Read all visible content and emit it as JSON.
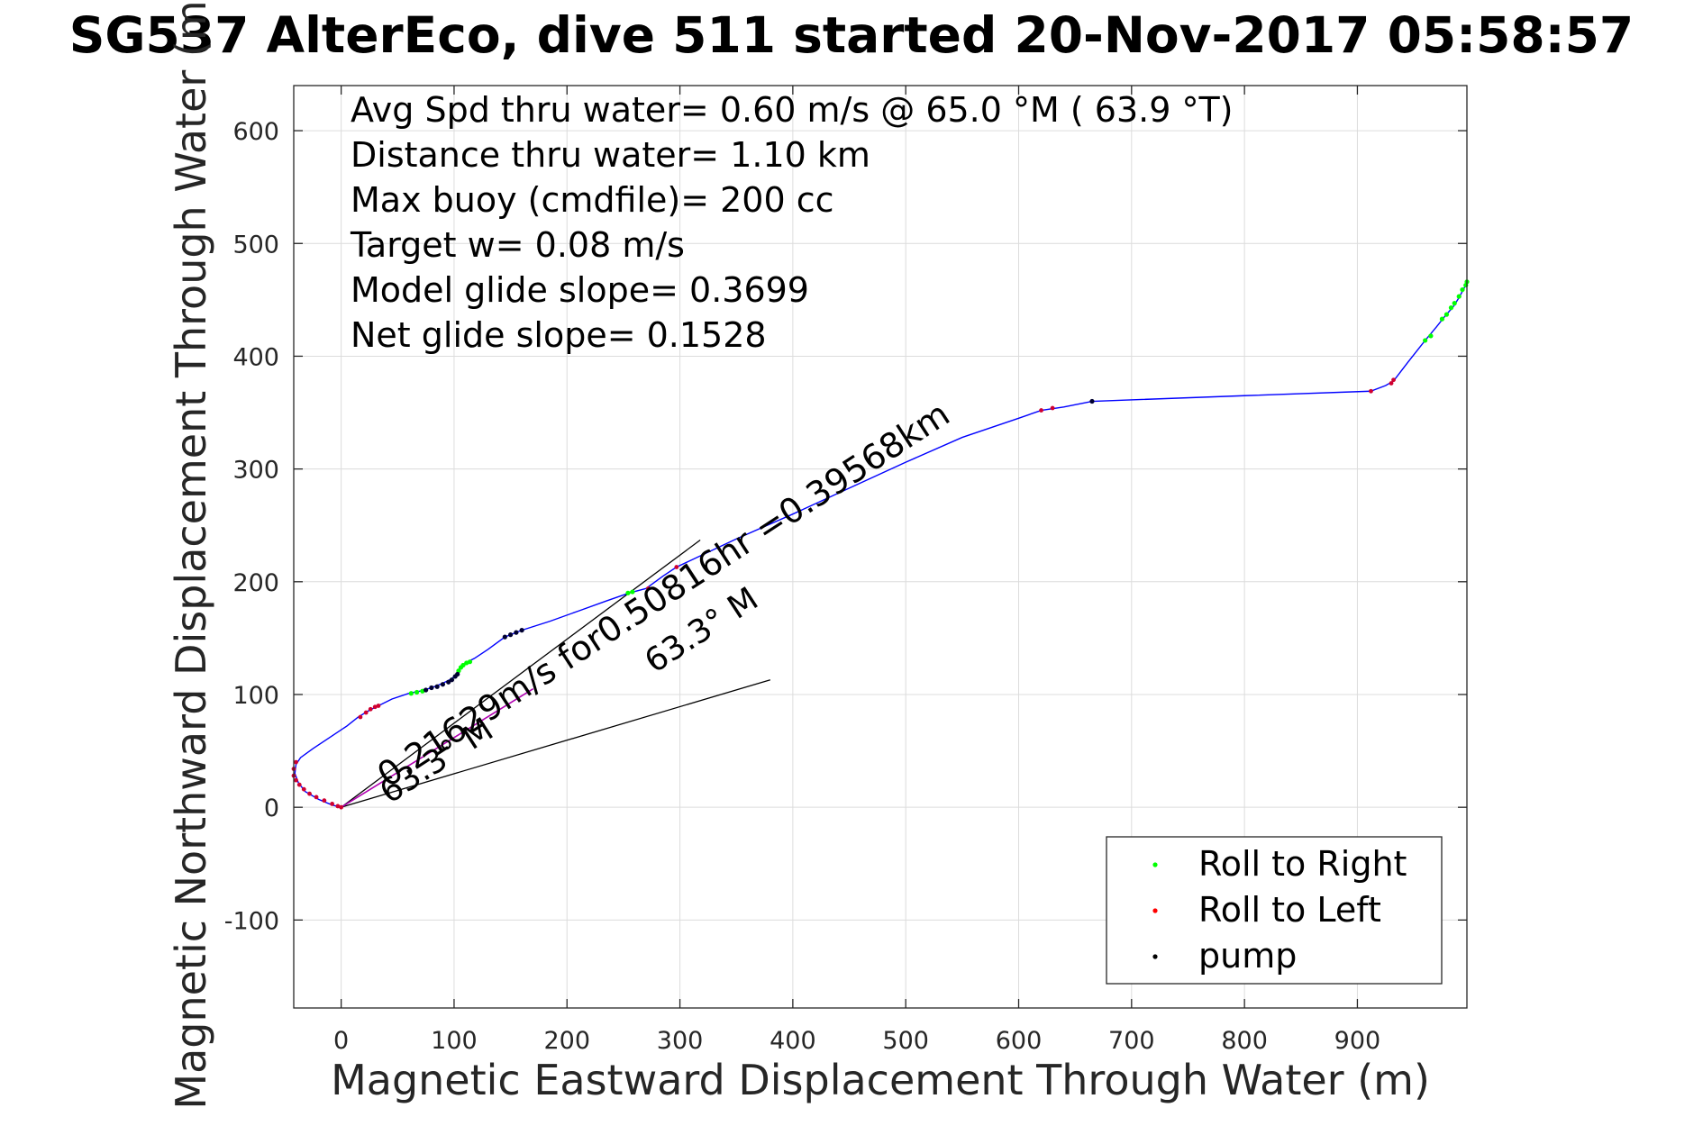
{
  "chart_data": {
    "type": "scatter",
    "title": "SG537 AlterEco, dive 511 started 20-Nov-2017 05:58:57",
    "xlabel": "Magnetic Eastward Displacement Through Water (m)",
    "ylabel": "Magnetic Northward Displacement Through Water (m)",
    "xlim": [
      -42,
      997
    ],
    "ylim": [
      -178,
      640
    ],
    "xticks": [
      0,
      100,
      200,
      300,
      400,
      500,
      600,
      700,
      800,
      900
    ],
    "yticks": [
      -100,
      0,
      100,
      200,
      300,
      400,
      500,
      600
    ],
    "grid": true,
    "info_lines": [
      "Avg Spd thru water=  0.60 m/s @  65.0 °M ( 63.9 °T)",
      "Distance thru water=  1.10 km",
      "Max buoy (cmdfile)= 200 cc",
      "Target w= 0.08 m/s",
      "Model glide slope= 0.3699",
      "Net glide slope= 0.1528"
    ],
    "annotations": [
      "0.21629m/s for0.50816hr =0.39568km",
      "63.3° M",
      "63.3° M"
    ],
    "legend": {
      "placement": "bottom-right",
      "entries": [
        {
          "name": "Roll to Right",
          "color": "#00ff00"
        },
        {
          "name": "Roll to Left",
          "color": "#ff0000"
        },
        {
          "name": "pump",
          "color": "#000000"
        }
      ]
    },
    "track_color": "#0000ff",
    "track": [
      [
        0,
        0
      ],
      [
        -8,
        2
      ],
      [
        -20,
        7
      ],
      [
        -32,
        14
      ],
      [
        -38,
        22
      ],
      [
        -41,
        30
      ],
      [
        -40,
        38
      ],
      [
        -36,
        44
      ],
      [
        -25,
        52
      ],
      [
        -10,
        62
      ],
      [
        5,
        72
      ],
      [
        15,
        80
      ],
      [
        25,
        86
      ],
      [
        33,
        90
      ],
      [
        45,
        96
      ],
      [
        60,
        101
      ],
      [
        70,
        103
      ],
      [
        80,
        106
      ],
      [
        90,
        110
      ],
      [
        98,
        114
      ],
      [
        103,
        119
      ],
      [
        106,
        124
      ],
      [
        110,
        128
      ],
      [
        118,
        132
      ],
      [
        130,
        140
      ],
      [
        145,
        151
      ],
      [
        160,
        157
      ],
      [
        185,
        165
      ],
      [
        210,
        174
      ],
      [
        235,
        183
      ],
      [
        255,
        190
      ],
      [
        270,
        194
      ],
      [
        285,
        205
      ],
      [
        297,
        213
      ],
      [
        350,
        238
      ],
      [
        400,
        260
      ],
      [
        450,
        283
      ],
      [
        500,
        306
      ],
      [
        550,
        328
      ],
      [
        600,
        345
      ],
      [
        620,
        352
      ],
      [
        640,
        355
      ],
      [
        665,
        360
      ],
      [
        800,
        365
      ],
      [
        912,
        369
      ],
      [
        925,
        374
      ],
      [
        932,
        378
      ],
      [
        945,
        395
      ],
      [
        960,
        414
      ],
      [
        970,
        426
      ],
      [
        978,
        436
      ],
      [
        985,
        444
      ],
      [
        990,
        452
      ],
      [
        997,
        465
      ]
    ],
    "roll_right": [
      [
        62,
        101
      ],
      [
        67,
        102
      ],
      [
        72,
        103
      ],
      [
        104,
        121
      ],
      [
        106,
        124
      ],
      [
        108,
        126
      ],
      [
        111,
        128
      ],
      [
        114,
        129
      ],
      [
        254,
        190
      ],
      [
        258,
        191
      ],
      [
        960,
        414
      ],
      [
        965,
        418
      ],
      [
        975,
        433
      ],
      [
        979,
        437
      ],
      [
        983,
        443
      ],
      [
        986,
        447
      ],
      [
        990,
        453
      ],
      [
        993,
        459
      ],
      [
        996,
        463
      ],
      [
        997,
        466
      ]
    ],
    "roll_left": [
      [
        -40,
        40
      ],
      [
        -42,
        34
      ],
      [
        -42,
        28
      ],
      [
        -40,
        24
      ],
      [
        -37,
        20
      ],
      [
        -33,
        16
      ],
      [
        -28,
        12
      ],
      [
        -22,
        9
      ],
      [
        -15,
        6
      ],
      [
        -8,
        3
      ],
      [
        -3,
        1
      ],
      [
        0,
        0
      ],
      [
        17,
        80
      ],
      [
        22,
        84
      ],
      [
        26,
        87
      ],
      [
        30,
        89
      ],
      [
        33,
        90
      ],
      [
        272,
        194
      ],
      [
        297,
        213
      ],
      [
        620,
        352
      ],
      [
        630,
        354
      ],
      [
        912,
        369
      ],
      [
        930,
        376
      ],
      [
        932,
        379
      ]
    ],
    "pump": [
      [
        75,
        104
      ],
      [
        80,
        106
      ],
      [
        85,
        107
      ],
      [
        90,
        109
      ],
      [
        95,
        111
      ],
      [
        98,
        113
      ],
      [
        101,
        116
      ],
      [
        103,
        118
      ],
      [
        145,
        151
      ],
      [
        150,
        153
      ],
      [
        155,
        155
      ],
      [
        160,
        157
      ],
      [
        665,
        360
      ]
    ],
    "current_line": [
      [
        0,
        0
      ],
      [
        170,
        105
      ]
    ],
    "reference_lines": [
      [
        [
          0,
          0
        ],
        [
          318,
          237
        ]
      ],
      [
        [
          0,
          0
        ],
        [
          380,
          113
        ]
      ]
    ]
  }
}
